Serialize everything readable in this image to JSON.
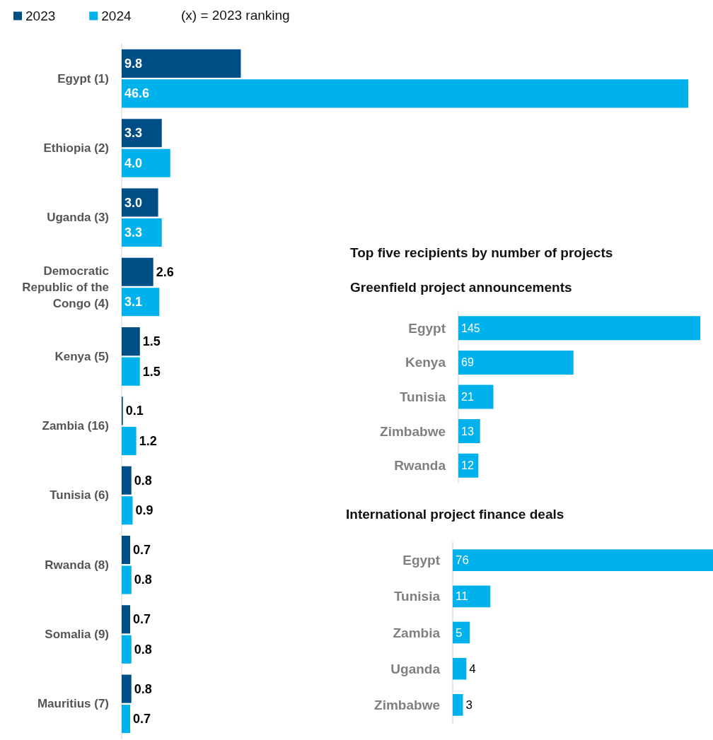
{
  "chart_data": [
    {
      "type": "bar",
      "orientation": "horizontal",
      "categories": [
        "Egypt (1)",
        "Ethiopia (2)",
        "Uganda (3)",
        "Democratic\nRepublic of the\nCongo (4)",
        "Kenya (5)",
        "Zambia (16)",
        "Tunisia (6)",
        "Rwanda (8)",
        "Somalia (9)",
        "Mauritius (7)"
      ],
      "series": [
        {
          "name": "2023",
          "color": "#004e86",
          "values": [
            9.8,
            3.3,
            3.0,
            2.6,
            1.5,
            0.1,
            0.8,
            0.7,
            0.7,
            0.8
          ],
          "value_labels": [
            "9.8",
            "3.3",
            "3.0",
            "2.6",
            "1.5",
            "0.1",
            "0.8",
            "0.7",
            "0.7",
            "0.8"
          ]
        },
        {
          "name": "2024",
          "color": "#00b1eb",
          "values": [
            46.6,
            4.0,
            3.3,
            3.1,
            1.5,
            1.2,
            0.9,
            0.8,
            0.8,
            0.7
          ],
          "value_labels": [
            "46.6",
            "4.0",
            "3.3",
            "3.1",
            "1.5",
            "1.2",
            "0.9",
            "0.8",
            "0.8",
            "0.7"
          ]
        }
      ],
      "legend": "top left",
      "tick_labels": "y",
      "annotations": [
        "(x) = 2023 ranking"
      ]
    },
    {
      "type": "bar",
      "orientation": "horizontal",
      "title": "Top five recipients by number of projects",
      "subtitle": "Greenfield project announcements",
      "categories": [
        "Egypt",
        "Kenya",
        "Tunisia",
        "Zimbabwe",
        "Rwanda"
      ],
      "series": [
        {
          "color": "#00b1eb",
          "values": [
            145,
            69,
            21,
            13,
            12
          ]
        }
      ],
      "data_labels": true,
      "tick_labels": "y"
    },
    {
      "type": "bar",
      "orientation": "horizontal",
      "title": "International project finance deals",
      "categories": [
        "Egypt",
        "Tunisia",
        "Zambia",
        "Uganda",
        "Zimbabwe"
      ],
      "series": [
        {
          "color": "#00b1eb",
          "values": [
            76,
            11,
            5,
            4,
            3
          ]
        }
      ],
      "data_labels": true,
      "tick_labels": "y"
    }
  ]
}
